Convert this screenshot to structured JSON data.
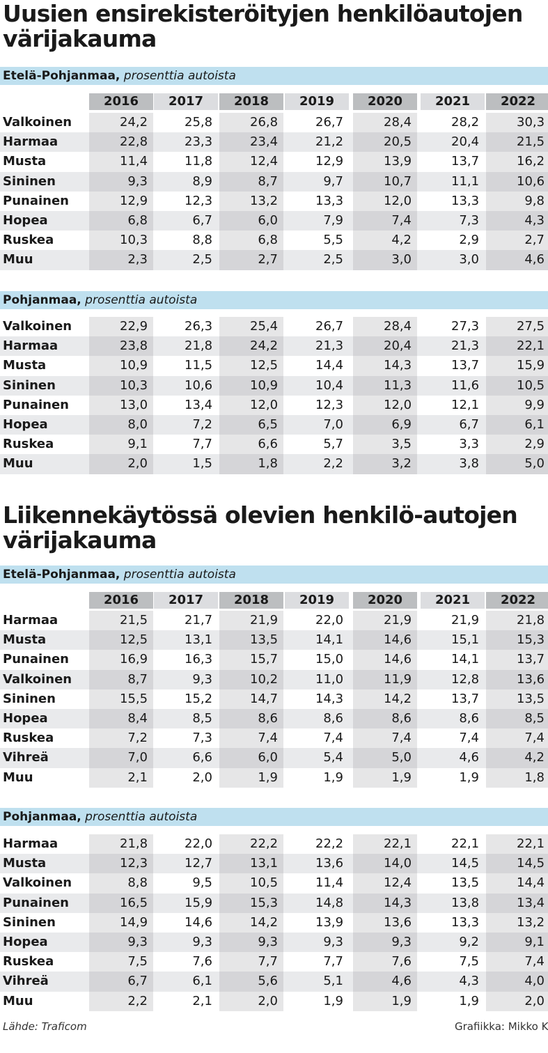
{
  "years": [
    "2016",
    "2017",
    "2018",
    "2019",
    "2020",
    "2021",
    "2022"
  ],
  "titles": {
    "new_registrations": "Uusien ensirekisteröityjen henkilöautojen värijakauma",
    "in_traffic": "Liikennekäytössä olevien henkilö-autojen värijakauma"
  },
  "colors": {
    "header_band": "#bfe0ef",
    "year_shade": "#bcbec0",
    "stripe": "#e9eaec"
  },
  "chart_data": [
    {
      "type": "table",
      "group": "Uusien ensirekisteröityjen henkilöautojen värijakauma",
      "region": "Etelä-Pohjanmaa",
      "unit": "prosenttia autoista",
      "columns": [
        "2016",
        "2017",
        "2018",
        "2019",
        "2020",
        "2021",
        "2022"
      ],
      "rows": [
        {
          "label": "Valkoinen",
          "values": [
            "24,2",
            "25,8",
            "26,8",
            "26,7",
            "28,4",
            "28,2",
            "30,3"
          ]
        },
        {
          "label": "Harmaa",
          "values": [
            "22,8",
            "23,3",
            "23,4",
            "21,2",
            "20,5",
            "20,4",
            "21,5"
          ]
        },
        {
          "label": "Musta",
          "values": [
            "11,4",
            "11,8",
            "12,4",
            "12,9",
            "13,9",
            "13,7",
            "16,2"
          ]
        },
        {
          "label": "Sininen",
          "values": [
            "9,3",
            "8,9",
            "8,7",
            "9,7",
            "10,7",
            "11,1",
            "10,6"
          ]
        },
        {
          "label": "Punainen",
          "values": [
            "12,9",
            "12,3",
            "13,2",
            "13,3",
            "12,0",
            "13,3",
            "9,8"
          ]
        },
        {
          "label": "Hopea",
          "values": [
            "6,8",
            "6,7",
            "6,0",
            "7,9",
            "7,4",
            "7,3",
            "4,3"
          ]
        },
        {
          "label": "Ruskea",
          "values": [
            "10,3",
            "8,8",
            "6,8",
            "5,5",
            "4,2",
            "2,9",
            "2,7"
          ]
        },
        {
          "label": "Muu",
          "values": [
            "2,3",
            "2,5",
            "2,7",
            "2,5",
            "3,0",
            "3,0",
            "4,6"
          ]
        }
      ]
    },
    {
      "type": "table",
      "group": "Uusien ensirekisteröityjen henkilöautojen värijakauma",
      "region": "Pohjanmaa",
      "unit": "prosenttia autoista",
      "columns": [
        "2016",
        "2017",
        "2018",
        "2019",
        "2020",
        "2021",
        "2022"
      ],
      "rows": [
        {
          "label": "Valkoinen",
          "values": [
            "22,9",
            "26,3",
            "25,4",
            "26,7",
            "28,4",
            "27,3",
            "27,5"
          ]
        },
        {
          "label": "Harmaa",
          "values": [
            "23,8",
            "21,8",
            "24,2",
            "21,3",
            "20,4",
            "21,3",
            "22,1"
          ]
        },
        {
          "label": "Musta",
          "values": [
            "10,9",
            "11,5",
            "12,5",
            "14,4",
            "14,3",
            "13,7",
            "15,9"
          ]
        },
        {
          "label": "Sininen",
          "values": [
            "10,3",
            "10,6",
            "10,9",
            "10,4",
            "11,3",
            "11,6",
            "10,5"
          ]
        },
        {
          "label": "Punainen",
          "values": [
            "13,0",
            "13,4",
            "12,0",
            "12,3",
            "12,0",
            "12,1",
            "9,9"
          ]
        },
        {
          "label": "Hopea",
          "values": [
            "8,0",
            "7,2",
            "6,5",
            "7,0",
            "6,9",
            "6,7",
            "6,1"
          ]
        },
        {
          "label": "Ruskea",
          "values": [
            "9,1",
            "7,7",
            "6,6",
            "5,7",
            "3,5",
            "3,3",
            "2,9"
          ]
        },
        {
          "label": "Muu",
          "values": [
            "2,0",
            "1,5",
            "1,8",
            "2,2",
            "3,2",
            "3,8",
            "5,0"
          ]
        }
      ]
    },
    {
      "type": "table",
      "group": "Liikennekäytössä olevien henkilö-autojen värijakauma",
      "region": "Etelä-Pohjanmaa",
      "unit": "prosenttia autoista",
      "columns": [
        "2016",
        "2017",
        "2018",
        "2019",
        "2020",
        "2021",
        "2022"
      ],
      "rows": [
        {
          "label": "Harmaa",
          "values": [
            "21,5",
            "21,7",
            "21,9",
            "22,0",
            "21,9",
            "21,9",
            "21,8"
          ]
        },
        {
          "label": "Musta",
          "values": [
            "12,5",
            "13,1",
            "13,5",
            "14,1",
            "14,6",
            "15,1",
            "15,3"
          ]
        },
        {
          "label": "Punainen",
          "values": [
            "16,9",
            "16,3",
            "15,7",
            "15,0",
            "14,6",
            "14,1",
            "13,7"
          ]
        },
        {
          "label": "Valkoinen",
          "values": [
            "8,7",
            "9,3",
            "10,2",
            "11,0",
            "11,9",
            "12,8",
            "13,6"
          ]
        },
        {
          "label": "Sininen",
          "values": [
            "15,5",
            "15,2",
            "14,7",
            "14,3",
            "14,2",
            "13,7",
            "13,5"
          ]
        },
        {
          "label": "Hopea",
          "values": [
            "8,4",
            "8,5",
            "8,6",
            "8,6",
            "8,6",
            "8,6",
            "8,5"
          ]
        },
        {
          "label": "Ruskea",
          "values": [
            "7,2",
            "7,3",
            "7,4",
            "7,4",
            "7,4",
            "7,4",
            "7,4"
          ]
        },
        {
          "label": "Vihreä",
          "values": [
            "7,0",
            "6,6",
            "6,0",
            "5,4",
            "5,0",
            "4,6",
            "4,2"
          ]
        },
        {
          "label": "Muu",
          "values": [
            "2,1",
            "2,0",
            "1,9",
            "1,9",
            "1,9",
            "1,9",
            "1,8"
          ]
        }
      ]
    },
    {
      "type": "table",
      "group": "Liikennekäytössä olevien henkilö-autojen värijakauma",
      "region": "Pohjanmaa",
      "unit": "prosenttia autoista",
      "columns": [
        "2016",
        "2017",
        "2018",
        "2019",
        "2020",
        "2021",
        "2022"
      ],
      "rows": [
        {
          "label": "Harmaa",
          "values": [
            "21,8",
            "22,0",
            "22,2",
            "22,2",
            "22,1",
            "22,1",
            "22,1"
          ]
        },
        {
          "label": "Musta",
          "values": [
            "12,3",
            "12,7",
            "13,1",
            "13,6",
            "14,0",
            "14,5",
            "14,5"
          ]
        },
        {
          "label": "Valkoinen",
          "values": [
            "8,8",
            "9,5",
            "10,5",
            "11,4",
            "12,4",
            "13,5",
            "14,4"
          ]
        },
        {
          "label": "Punainen",
          "values": [
            "16,5",
            "15,9",
            "15,3",
            "14,8",
            "14,3",
            "13,8",
            "13,4"
          ]
        },
        {
          "label": "Sininen",
          "values": [
            "14,9",
            "14,6",
            "14,2",
            "13,9",
            "13,6",
            "13,3",
            "13,2"
          ]
        },
        {
          "label": "Hopea",
          "values": [
            "9,3",
            "9,3",
            "9,3",
            "9,3",
            "9,3",
            "9,2",
            "9,1"
          ]
        },
        {
          "label": "Ruskea",
          "values": [
            "7,5",
            "7,6",
            "7,7",
            "7,7",
            "7,6",
            "7,5",
            "7,4"
          ]
        },
        {
          "label": "Vihreä",
          "values": [
            "6,7",
            "6,1",
            "5,6",
            "5,1",
            "4,6",
            "4,3",
            "4,0"
          ]
        },
        {
          "label": "Muu",
          "values": [
            "2,2",
            "2,1",
            "2,0",
            "1,9",
            "1,9",
            "1,9",
            "2,0"
          ]
        }
      ]
    }
  ],
  "footer": {
    "source": "Lähde: Traficom",
    "credit": "Grafiikka: Mikko Kier"
  }
}
